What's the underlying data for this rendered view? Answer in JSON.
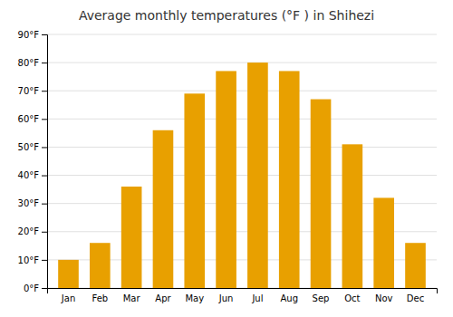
{
  "chart_data": {
    "type": "bar",
    "title": "Average monthly temperatures (°F ) in Shihezi",
    "categories": [
      "Jan",
      "Feb",
      "Mar",
      "Apr",
      "May",
      "Jun",
      "Jul",
      "Aug",
      "Sep",
      "Oct",
      "Nov",
      "Dec"
    ],
    "values": [
      10,
      16,
      36,
      56,
      69,
      77,
      80,
      77,
      67,
      51,
      32,
      16
    ],
    "color": "#E8A000",
    "ylim": [
      0,
      90
    ],
    "yticks": [
      {
        "value": 0,
        "label": "0°F"
      },
      {
        "value": 10,
        "label": "10°F"
      },
      {
        "value": 20,
        "label": "20°F"
      },
      {
        "value": 30,
        "label": "30°F"
      },
      {
        "value": 40,
        "label": "40°F"
      },
      {
        "value": 50,
        "label": "50°F"
      },
      {
        "value": 60,
        "label": "60°F"
      },
      {
        "value": 70,
        "label": "70°F"
      },
      {
        "value": 80,
        "label": "80°F"
      },
      {
        "value": 90,
        "label": "90°F"
      }
    ],
    "grid": true
  }
}
